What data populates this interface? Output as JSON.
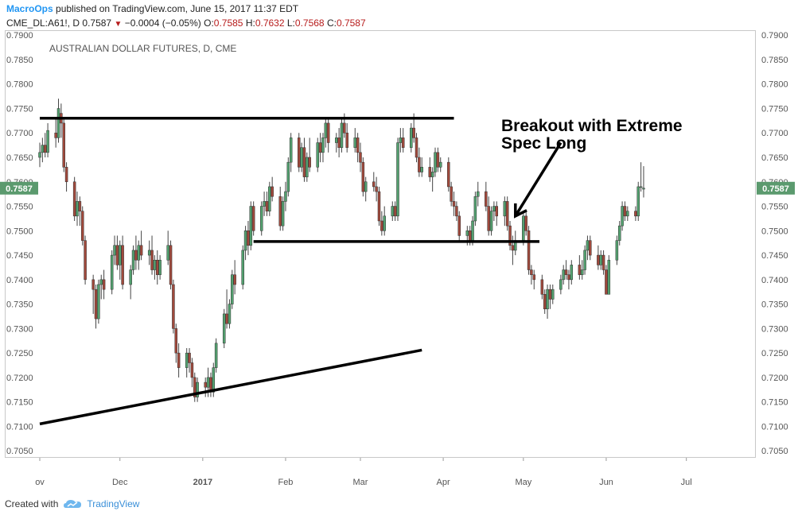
{
  "header": {
    "publisher": "MacroOps",
    "published_text": "published on TradingView.com, June 15, 2017 11:37 EDT",
    "symbol": "CME_DL:A61!, D",
    "last": "0.7587",
    "change": "−0.0004 (−0.05%)",
    "o_label": "O:",
    "o": "0.7585",
    "h_label": "H:",
    "h": "0.7632",
    "l_label": "L:",
    "l": "0.7568",
    "c_label": "C:",
    "c": "0.7587"
  },
  "footer": {
    "created_with": "Created with",
    "brand": "TradingView"
  },
  "colors": {
    "up": "#53a06f",
    "down": "#a0493c",
    "price_tag": "#5b9a6e",
    "axis_text": "#555555",
    "trend_line": "#000000"
  },
  "chart_data": {
    "type": "candlestick",
    "title": "AUSTRALIAN DOLLAR FUTURES, D, CME",
    "ylim": [
      0.7,
      0.791
    ],
    "y_ticks": [
      "0.7050",
      "0.7100",
      "0.7150",
      "0.7200",
      "0.7250",
      "0.7300",
      "0.7350",
      "0.7400",
      "0.7450",
      "0.7500",
      "0.7550",
      "0.7600",
      "0.7650",
      "0.7700",
      "0.7750",
      "0.7800",
      "0.7850",
      "0.7900"
    ],
    "x_ticks": [
      "ov",
      "Dec",
      "2017",
      "Feb",
      "Mar",
      "Apr",
      "May",
      "Jun",
      "Jul"
    ],
    "x_tick_dates": [
      "2016-11-01",
      "2016-12-01",
      "2017-01-01",
      "2017-02-01",
      "2017-03-01",
      "2017-04-01",
      "2017-05-01",
      "2017-06-01",
      "2017-07-01"
    ],
    "x_range": [
      "2016-11-01",
      "2017-07-27"
    ],
    "last_price": "0.7587",
    "candles": [
      [
        "2016-11-01",
        0.765,
        0.768,
        0.763,
        0.766
      ],
      [
        "2016-11-02",
        0.766,
        0.769,
        0.764,
        0.7675
      ],
      [
        "2016-11-03",
        0.7675,
        0.77,
        0.765,
        0.766
      ],
      [
        "2016-11-04",
        0.766,
        0.772,
        0.765,
        0.7705
      ],
      [
        "2016-11-07",
        0.77,
        0.773,
        0.767,
        0.769
      ],
      [
        "2016-11-08",
        0.769,
        0.777,
        0.768,
        0.775
      ],
      [
        "2016-11-09",
        0.774,
        0.776,
        0.769,
        0.772
      ],
      [
        "2016-11-10",
        0.772,
        0.773,
        0.762,
        0.763
      ],
      [
        "2016-11-11",
        0.763,
        0.764,
        0.758,
        0.76
      ],
      [
        "2016-11-14",
        0.76,
        0.761,
        0.752,
        0.753
      ],
      [
        "2016-11-15",
        0.753,
        0.758,
        0.751,
        0.756
      ],
      [
        "2016-11-16",
        0.756,
        0.757,
        0.751,
        0.754
      ],
      [
        "2016-11-17",
        0.754,
        0.755,
        0.747,
        0.748
      ],
      [
        "2016-11-18",
        0.748,
        0.749,
        0.739,
        0.74
      ],
      [
        "2016-11-21",
        0.74,
        0.741,
        0.733,
        0.738
      ],
      [
        "2016-11-22",
        0.738,
        0.739,
        0.73,
        0.732
      ],
      [
        "2016-11-23",
        0.732,
        0.74,
        0.731,
        0.739
      ],
      [
        "2016-11-24",
        0.739,
        0.741,
        0.736,
        0.74
      ],
      [
        "2016-11-25",
        0.74,
        0.742,
        0.736,
        0.738
      ],
      [
        "2016-11-28",
        0.738,
        0.746,
        0.737,
        0.745
      ],
      [
        "2016-11-29",
        0.745,
        0.749,
        0.743,
        0.747
      ],
      [
        "2016-11-30",
        0.747,
        0.749,
        0.742,
        0.743
      ],
      [
        "2016-12-01",
        0.743,
        0.748,
        0.74,
        0.747
      ],
      [
        "2016-12-02",
        0.747,
        0.749,
        0.738,
        0.739
      ],
      [
        "2016-12-05",
        0.739,
        0.743,
        0.736,
        0.742
      ],
      [
        "2016-12-06",
        0.742,
        0.747,
        0.741,
        0.746
      ],
      [
        "2016-12-07",
        0.746,
        0.749,
        0.742,
        0.744
      ],
      [
        "2016-12-08",
        0.744,
        0.748,
        0.742,
        0.747
      ],
      [
        "2016-12-09",
        0.747,
        0.75,
        0.744,
        0.745
      ],
      [
        "2016-12-12",
        0.745,
        0.748,
        0.743,
        0.746
      ],
      [
        "2016-12-13",
        0.746,
        0.749,
        0.741,
        0.742
      ],
      [
        "2016-12-14",
        0.742,
        0.745,
        0.74,
        0.744
      ],
      [
        "2016-12-15",
        0.744,
        0.746,
        0.739,
        0.741
      ],
      [
        "2016-12-16",
        0.741,
        0.745,
        0.74,
        0.744
      ],
      [
        "2016-12-19",
        0.744,
        0.75,
        0.743,
        0.747
      ],
      [
        "2016-12-20",
        0.747,
        0.748,
        0.738,
        0.739
      ],
      [
        "2016-12-21",
        0.739,
        0.74,
        0.729,
        0.73
      ],
      [
        "2016-12-22",
        0.73,
        0.731,
        0.723,
        0.725
      ],
      [
        "2016-12-23",
        0.725,
        0.727,
        0.72,
        0.722
      ],
      [
        "2016-12-26",
        0.722,
        0.726,
        0.72,
        0.725
      ],
      [
        "2016-12-27",
        0.725,
        0.726,
        0.721,
        0.723
      ],
      [
        "2016-12-28",
        0.723,
        0.724,
        0.718,
        0.72
      ],
      [
        "2016-12-29",
        0.72,
        0.721,
        0.715,
        0.716
      ],
      [
        "2016-12-30",
        0.716,
        0.72,
        0.715,
        0.719
      ],
      [
        "2017-01-02",
        0.719,
        0.72,
        0.716,
        0.718
      ],
      [
        "2017-01-03",
        0.718,
        0.722,
        0.716,
        0.72
      ],
      [
        "2017-01-04",
        0.72,
        0.721,
        0.716,
        0.717
      ],
      [
        "2017-01-05",
        0.717,
        0.723,
        0.716,
        0.722
      ],
      [
        "2017-01-06",
        0.722,
        0.728,
        0.721,
        0.727
      ],
      [
        "2017-01-09",
        0.727,
        0.734,
        0.726,
        0.733
      ],
      [
        "2017-01-10",
        0.733,
        0.738,
        0.73,
        0.731
      ],
      [
        "2017-01-11",
        0.731,
        0.736,
        0.73,
        0.735
      ],
      [
        "2017-01-12",
        0.735,
        0.742,
        0.734,
        0.741
      ],
      [
        "2017-01-13",
        0.741,
        0.744,
        0.737,
        0.739
      ],
      [
        "2017-01-16",
        0.739,
        0.747,
        0.738,
        0.746
      ],
      [
        "2017-01-17",
        0.746,
        0.751,
        0.744,
        0.75
      ],
      [
        "2017-01-18",
        0.75,
        0.752,
        0.745,
        0.747
      ],
      [
        "2017-01-19",
        0.747,
        0.756,
        0.746,
        0.755
      ],
      [
        "2017-01-20",
        0.755,
        0.756,
        0.749,
        0.75
      ],
      [
        "2017-01-23",
        0.75,
        0.756,
        0.749,
        0.755
      ],
      [
        "2017-01-24",
        0.755,
        0.758,
        0.753,
        0.756
      ],
      [
        "2017-01-25",
        0.756,
        0.758,
        0.753,
        0.754
      ],
      [
        "2017-01-26",
        0.754,
        0.76,
        0.753,
        0.759
      ],
      [
        "2017-01-27",
        0.759,
        0.761,
        0.756,
        0.757
      ],
      [
        "2017-01-30",
        0.757,
        0.759,
        0.75,
        0.751
      ],
      [
        "2017-01-31",
        0.751,
        0.757,
        0.75,
        0.756
      ],
      [
        "2017-02-01",
        0.756,
        0.76,
        0.754,
        0.758
      ],
      [
        "2017-02-02",
        0.758,
        0.765,
        0.757,
        0.764
      ],
      [
        "2017-02-03",
        0.764,
        0.77,
        0.762,
        0.769
      ],
      [
        "2017-02-06",
        0.769,
        0.77,
        0.762,
        0.763
      ],
      [
        "2017-02-07",
        0.763,
        0.768,
        0.762,
        0.767
      ],
      [
        "2017-02-08",
        0.767,
        0.769,
        0.76,
        0.761
      ],
      [
        "2017-02-09",
        0.761,
        0.766,
        0.76,
        0.765
      ],
      [
        "2017-02-10",
        0.765,
        0.769,
        0.762,
        0.763
      ],
      [
        "2017-02-13",
        0.763,
        0.769,
        0.762,
        0.768
      ],
      [
        "2017-02-14",
        0.768,
        0.77,
        0.764,
        0.766
      ],
      [
        "2017-02-15",
        0.766,
        0.77,
        0.764,
        0.769
      ],
      [
        "2017-02-16",
        0.769,
        0.773,
        0.767,
        0.772
      ],
      [
        "2017-02-17",
        0.772,
        0.773,
        0.766,
        0.768
      ],
      [
        "2017-02-20",
        0.768,
        0.77,
        0.766,
        0.769
      ],
      [
        "2017-02-21",
        0.769,
        0.771,
        0.765,
        0.767
      ],
      [
        "2017-02-22",
        0.767,
        0.773,
        0.766,
        0.772
      ],
      [
        "2017-02-23",
        0.772,
        0.774,
        0.769,
        0.77
      ],
      [
        "2017-02-24",
        0.77,
        0.772,
        0.766,
        0.767
      ],
      [
        "2017-02-27",
        0.767,
        0.771,
        0.766,
        0.769
      ],
      [
        "2017-02-28",
        0.769,
        0.77,
        0.764,
        0.766
      ],
      [
        "2017-03-01",
        0.766,
        0.768,
        0.762,
        0.764
      ],
      [
        "2017-03-02",
        0.764,
        0.765,
        0.757,
        0.758
      ],
      [
        "2017-03-03",
        0.758,
        0.761,
        0.756,
        0.76
      ],
      [
        "2017-03-06",
        0.76,
        0.762,
        0.758,
        0.759
      ],
      [
        "2017-03-07",
        0.759,
        0.761,
        0.756,
        0.758
      ],
      [
        "2017-03-08",
        0.758,
        0.759,
        0.751,
        0.752
      ],
      [
        "2017-03-09",
        0.752,
        0.754,
        0.749,
        0.75
      ],
      [
        "2017-03-10",
        0.75,
        0.755,
        0.749,
        0.753
      ],
      [
        "2017-03-13",
        0.753,
        0.756,
        0.752,
        0.755
      ],
      [
        "2017-03-14",
        0.755,
        0.756,
        0.752,
        0.753
      ],
      [
        "2017-03-15",
        0.753,
        0.769,
        0.752,
        0.768
      ],
      [
        "2017-03-16",
        0.768,
        0.771,
        0.766,
        0.769
      ],
      [
        "2017-03-17",
        0.769,
        0.771,
        0.766,
        0.767
      ],
      [
        "2017-03-20",
        0.767,
        0.772,
        0.766,
        0.771
      ],
      [
        "2017-03-21",
        0.771,
        0.774,
        0.768,
        0.769
      ],
      [
        "2017-03-22",
        0.769,
        0.77,
        0.764,
        0.765
      ],
      [
        "2017-03-23",
        0.765,
        0.767,
        0.761,
        0.762
      ],
      [
        "2017-03-24",
        0.762,
        0.765,
        0.761,
        0.763
      ],
      [
        "2017-03-27",
        0.763,
        0.765,
        0.76,
        0.761
      ],
      [
        "2017-03-28",
        0.761,
        0.763,
        0.758,
        0.762
      ],
      [
        "2017-03-29",
        0.762,
        0.767,
        0.761,
        0.766
      ],
      [
        "2017-03-30",
        0.766,
        0.767,
        0.762,
        0.763
      ],
      [
        "2017-03-31",
        0.763,
        0.765,
        0.762,
        0.764
      ],
      [
        "2017-04-03",
        0.764,
        0.765,
        0.758,
        0.759
      ],
      [
        "2017-04-04",
        0.759,
        0.76,
        0.755,
        0.756
      ],
      [
        "2017-04-05",
        0.756,
        0.758,
        0.753,
        0.755
      ],
      [
        "2017-04-06",
        0.755,
        0.756,
        0.752,
        0.753
      ],
      [
        "2017-04-07",
        0.753,
        0.754,
        0.748,
        0.749
      ],
      [
        "2017-04-10",
        0.749,
        0.751,
        0.747,
        0.75
      ],
      [
        "2017-04-11",
        0.75,
        0.751,
        0.747,
        0.748
      ],
      [
        "2017-04-12",
        0.748,
        0.753,
        0.747,
        0.752
      ],
      [
        "2017-04-13",
        0.752,
        0.758,
        0.751,
        0.757
      ],
      [
        "2017-04-14",
        0.757,
        0.76,
        0.755,
        0.758
      ],
      [
        "2017-04-17",
        0.758,
        0.76,
        0.754,
        0.755
      ],
      [
        "2017-04-18",
        0.755,
        0.757,
        0.749,
        0.75
      ],
      [
        "2017-04-19",
        0.75,
        0.755,
        0.749,
        0.754
      ],
      [
        "2017-04-20",
        0.754,
        0.756,
        0.752,
        0.755
      ],
      [
        "2017-04-21",
        0.755,
        0.756,
        0.751,
        0.753
      ],
      [
        "2017-04-24",
        0.753,
        0.757,
        0.751,
        0.756
      ],
      [
        "2017-04-25",
        0.756,
        0.757,
        0.75,
        0.751
      ],
      [
        "2017-04-26",
        0.751,
        0.752,
        0.746,
        0.747
      ],
      [
        "2017-04-27",
        0.747,
        0.749,
        0.743,
        0.746
      ],
      [
        "2017-04-28",
        0.746,
        0.75,
        0.745,
        0.748
      ],
      [
        "2017-05-01",
        0.748,
        0.754,
        0.747,
        0.753
      ],
      [
        "2017-05-02",
        0.753,
        0.754,
        0.749,
        0.75
      ],
      [
        "2017-05-03",
        0.75,
        0.751,
        0.741,
        0.742
      ],
      [
        "2017-05-04",
        0.742,
        0.743,
        0.739,
        0.741
      ],
      [
        "2017-05-05",
        0.741,
        0.742,
        0.738,
        0.74
      ],
      [
        "2017-05-08",
        0.74,
        0.741,
        0.736,
        0.737
      ],
      [
        "2017-05-09",
        0.737,
        0.738,
        0.733,
        0.734
      ],
      [
        "2017-05-10",
        0.734,
        0.739,
        0.732,
        0.738
      ],
      [
        "2017-05-11",
        0.738,
        0.739,
        0.734,
        0.736
      ],
      [
        "2017-05-12",
        0.736,
        0.739,
        0.735,
        0.738
      ],
      [
        "2017-05-15",
        0.738,
        0.741,
        0.737,
        0.74
      ],
      [
        "2017-05-16",
        0.74,
        0.743,
        0.739,
        0.742
      ],
      [
        "2017-05-17",
        0.742,
        0.744,
        0.74,
        0.741
      ],
      [
        "2017-05-18",
        0.741,
        0.742,
        0.738,
        0.74
      ],
      [
        "2017-05-19",
        0.74,
        0.744,
        0.739,
        0.743
      ],
      [
        "2017-05-22",
        0.743,
        0.745,
        0.74,
        0.741
      ],
      [
        "2017-05-23",
        0.741,
        0.744,
        0.74,
        0.742
      ],
      [
        "2017-05-24",
        0.742,
        0.747,
        0.741,
        0.746
      ],
      [
        "2017-05-25",
        0.746,
        0.749,
        0.744,
        0.748
      ],
      [
        "2017-05-26",
        0.748,
        0.749,
        0.744,
        0.745
      ],
      [
        "2017-05-29",
        0.745,
        0.747,
        0.742,
        0.743
      ],
      [
        "2017-05-30",
        0.743,
        0.746,
        0.742,
        0.745
      ],
      [
        "2017-05-31",
        0.745,
        0.746,
        0.741,
        0.742
      ],
      [
        "2017-06-01",
        0.742,
        0.743,
        0.737,
        0.737
      ],
      [
        "2017-06-02",
        0.737,
        0.745,
        0.737,
        0.744
      ],
      [
        "2017-06-05",
        0.744,
        0.749,
        0.743,
        0.748
      ],
      [
        "2017-06-06",
        0.748,
        0.752,
        0.747,
        0.751
      ],
      [
        "2017-06-07",
        0.751,
        0.756,
        0.75,
        0.755
      ],
      [
        "2017-06-08",
        0.755,
        0.756,
        0.752,
        0.753
      ],
      [
        "2017-06-09",
        0.753,
        0.755,
        0.752,
        0.754
      ],
      [
        "2017-06-12",
        0.754,
        0.755,
        0.752,
        0.753
      ],
      [
        "2017-06-13",
        0.753,
        0.76,
        0.752,
        0.759
      ],
      [
        "2017-06-14",
        0.759,
        0.764,
        0.758,
        0.759
      ],
      [
        "2017-06-15",
        0.7585,
        0.7632,
        0.7568,
        0.7587
      ]
    ],
    "annotations": {
      "lines": [
        {
          "name": "resistance-line",
          "from": [
            "2016-11-01",
            0.773
          ],
          "to": [
            "2017-04-05",
            0.773
          ]
        },
        {
          "name": "breakout-support-line",
          "from": [
            "2017-01-20",
            0.7478
          ],
          "to": [
            "2017-05-07",
            0.7478
          ]
        },
        {
          "name": "uptrend-line",
          "from": [
            "2016-11-01",
            0.7105
          ],
          "to": [
            "2017-03-24",
            0.7256
          ]
        }
      ],
      "arrow": {
        "from": [
          "2017-05-15",
          0.768
        ],
        "to": [
          "2017-04-28",
          0.753
        ]
      },
      "text": [
        "Breakout with Extreme",
        "Spec Long"
      ]
    }
  }
}
